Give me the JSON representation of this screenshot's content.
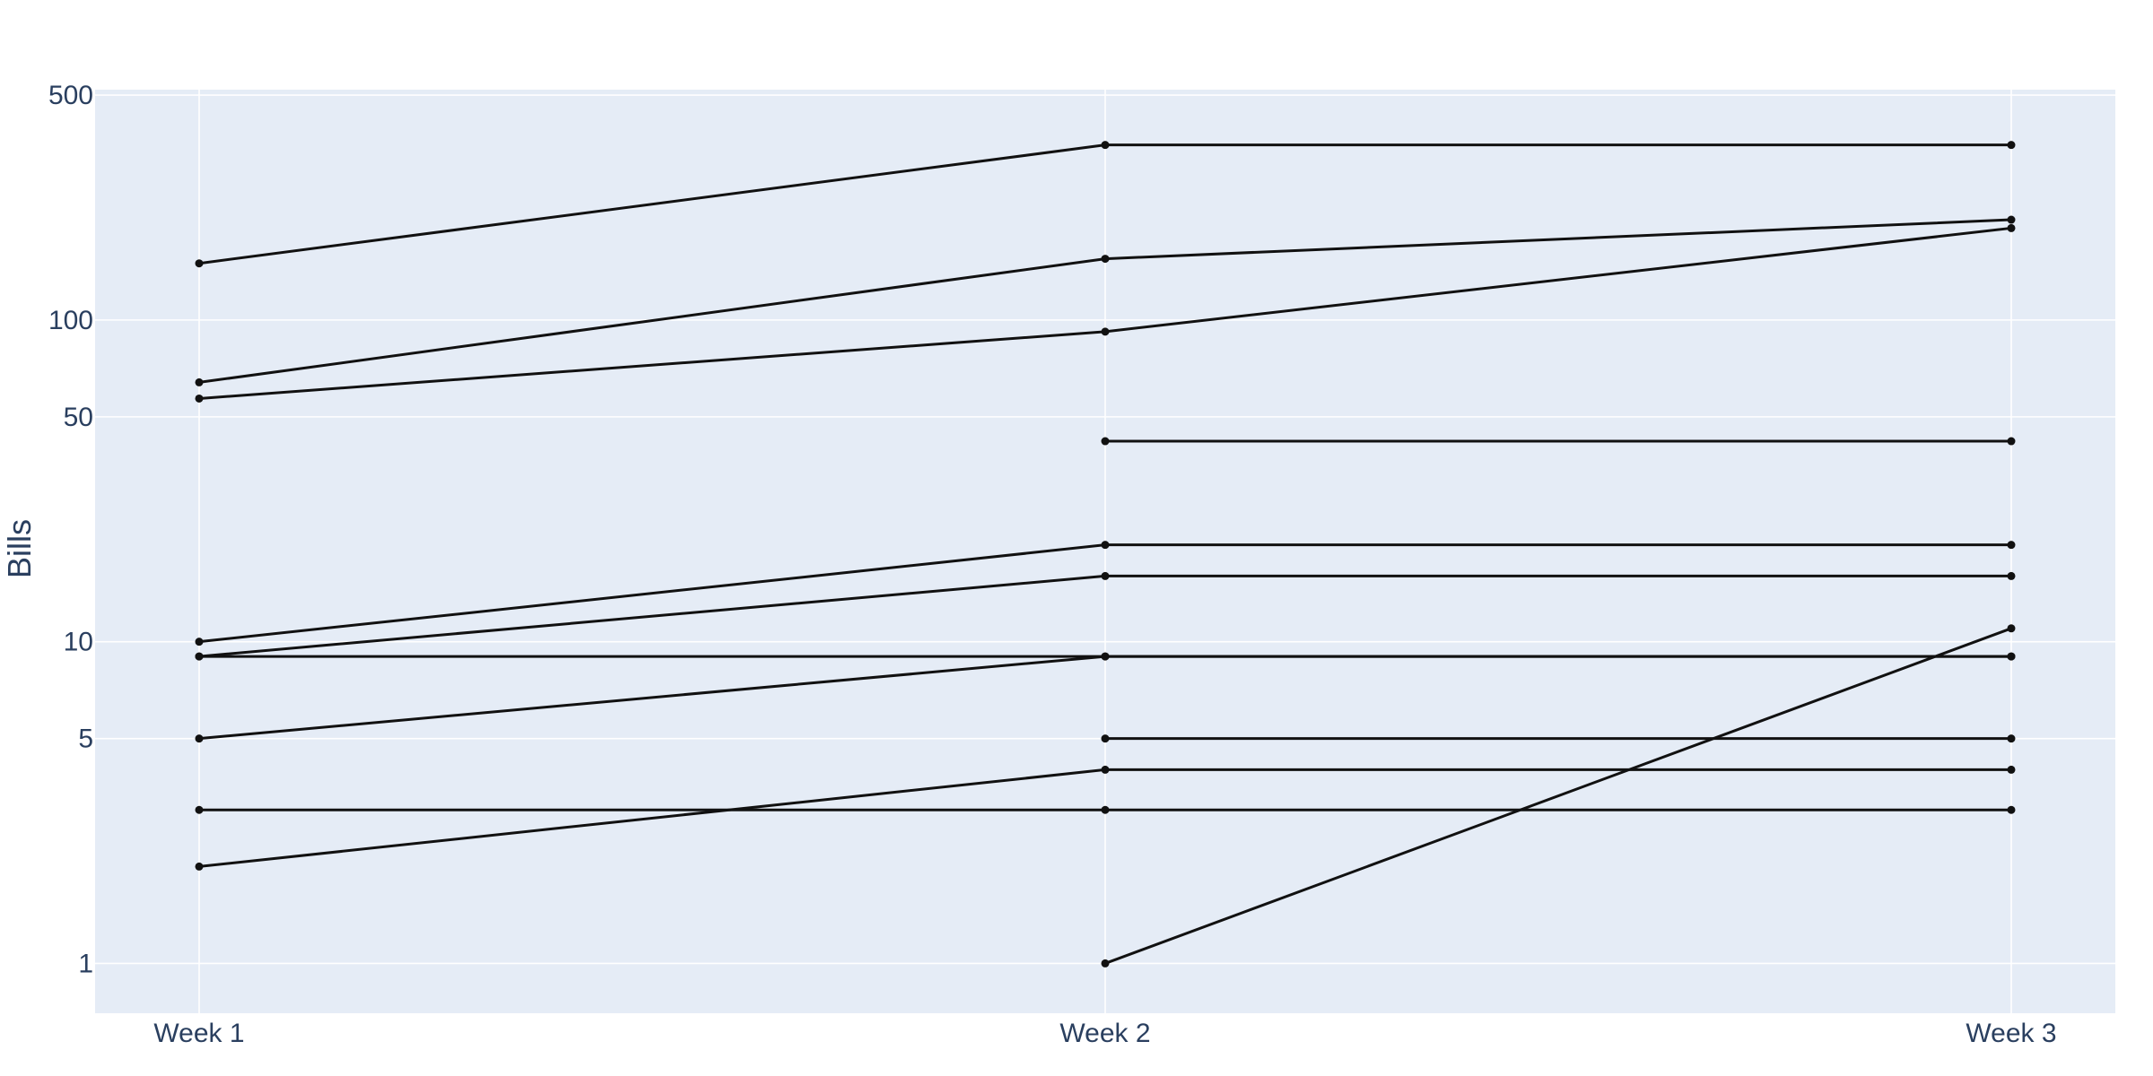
{
  "chart_data": {
    "type": "line",
    "title": "",
    "xlabel": "",
    "ylabel": "Bills",
    "categories": [
      "Week 1",
      "Week 2",
      "Week 3"
    ],
    "y_scale": "log",
    "ylim": [
      0.7,
      520
    ],
    "y_ticks": [
      1,
      5,
      10,
      50,
      100,
      500
    ],
    "y_tick_labels": [
      "1",
      "5",
      "10",
      "50",
      "100",
      "500"
    ],
    "grid": true,
    "legend": "none",
    "colors": {
      "background": "#ffffff",
      "plot_background": "#e5ecf6",
      "grid": "#ffffff",
      "line": "#111111",
      "text": "#2a3f5f"
    },
    "series": [
      {
        "values": [
          150,
          350,
          350
        ]
      },
      {
        "values": [
          64,
          155,
          205
        ]
      },
      {
        "values": [
          57,
          92,
          193
        ]
      },
      {
        "values": [
          null,
          42,
          42
        ]
      },
      {
        "values": [
          10,
          20,
          20
        ]
      },
      {
        "values": [
          9,
          16,
          16
        ]
      },
      {
        "values": [
          9,
          9,
          9
        ]
      },
      {
        "values": [
          5,
          9,
          9
        ]
      },
      {
        "values": [
          null,
          5,
          5
        ]
      },
      {
        "values": [
          2,
          4,
          4
        ]
      },
      {
        "values": [
          3,
          3,
          3
        ]
      },
      {
        "values": [
          null,
          1,
          11
        ]
      }
    ]
  }
}
